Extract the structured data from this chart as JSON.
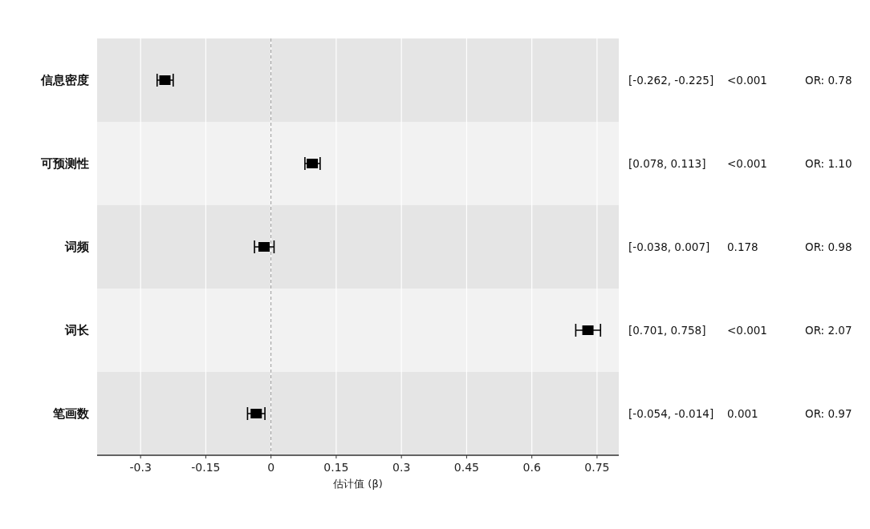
{
  "chart_data": {
    "type": "scatter",
    "orientation": "horizontal",
    "xlabel": "估计值 (β)",
    "categories": [
      "信息密度",
      "可预测性",
      "词频",
      "词长",
      "笔画数"
    ],
    "series": [
      {
        "color": "#000000",
        "values": [
          -0.244,
          0.095,
          -0.016,
          0.729,
          -0.034
        ],
        "errors": [
          [
            -0.262,
            -0.225
          ],
          [
            0.078,
            0.113
          ],
          [
            -0.038,
            0.007
          ],
          [
            0.701,
            0.758
          ],
          [
            -0.054,
            -0.014
          ]
        ]
      }
    ],
    "marker": "square",
    "xlim": [
      -0.4,
      0.8
    ],
    "xticks": [
      -0.3,
      -0.15,
      0,
      0.15,
      0.3,
      0.45,
      0.6,
      0.75
    ],
    "grid": "x",
    "ref_lines": [
      {
        "axis": "x",
        "value": 0,
        "line_style": "dashed",
        "color": "#999999"
      }
    ],
    "annotations": [
      "[-0.262, -0.225]",
      "<0.001",
      "OR: 0.78",
      "[0.078, 0.113]",
      "<0.001",
      "OR: 1.10",
      "[-0.038, 0.007]",
      "0.178",
      "OR: 0.98",
      "[0.701, 0.758]",
      "<0.001",
      "OR: 2.07",
      "[-0.054, -0.014]",
      "0.001",
      "OR: 0.97"
    ]
  }
}
